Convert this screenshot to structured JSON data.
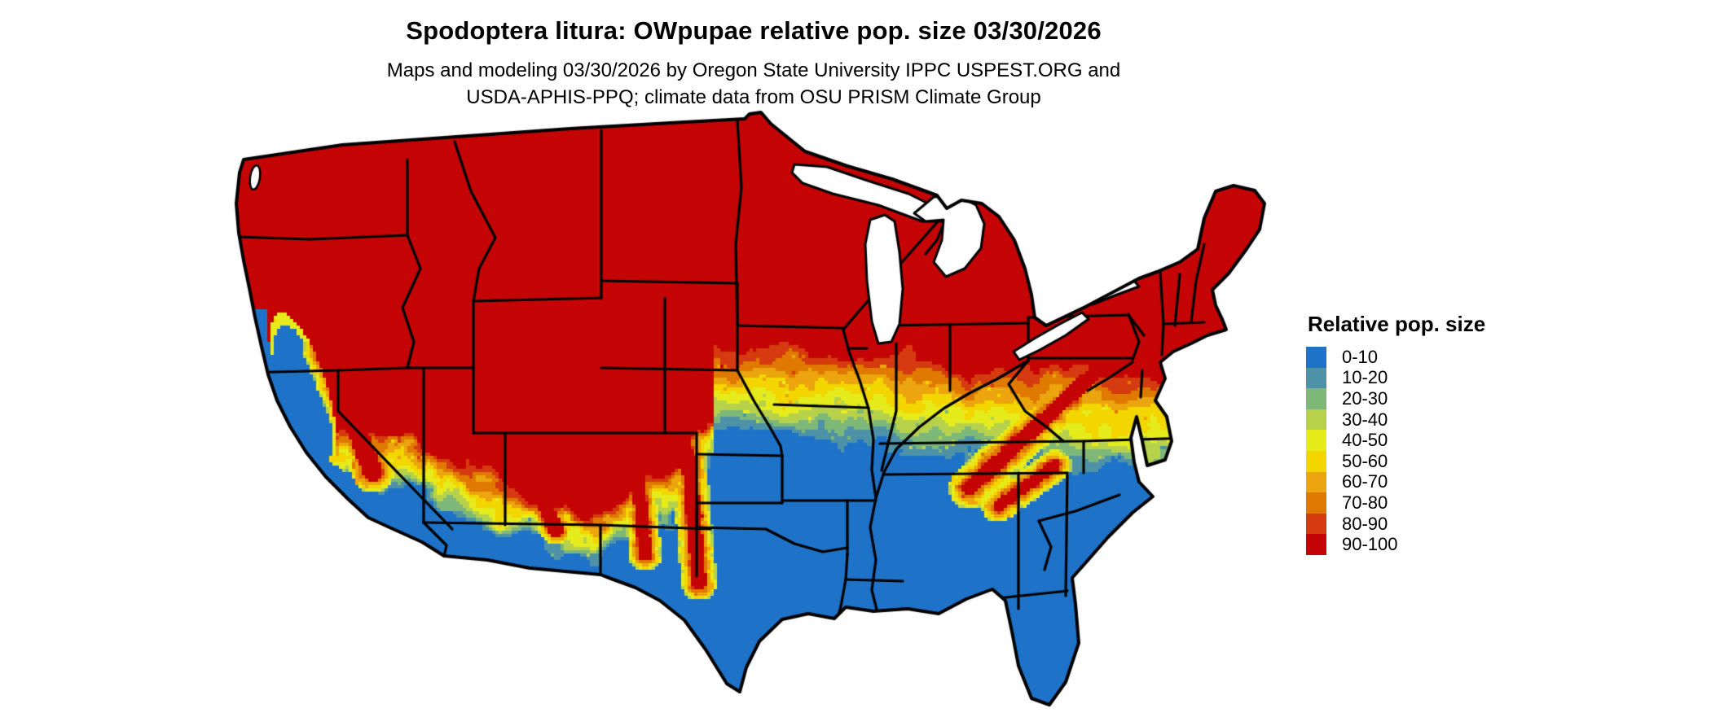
{
  "header": {
    "title": "Spodoptera litura: OWpupae relative pop. size 03/30/2026",
    "subtitle_line1": "Maps and modeling 03/30/2026 by Oregon State University IPPC USPEST.ORG and",
    "subtitle_line2": "USDA-APHIS-PPQ; climate data from OSU PRISM Climate Group"
  },
  "legend": {
    "title": "Relative pop. size",
    "items": [
      {
        "label": "0-10",
        "color": "#1E73C8"
      },
      {
        "label": "10-20",
        "color": "#4D92A6"
      },
      {
        "label": "20-30",
        "color": "#7DB878"
      },
      {
        "label": "30-40",
        "color": "#B7D24A"
      },
      {
        "label": "40-50",
        "color": "#E6EB1C"
      },
      {
        "label": "50-60",
        "color": "#F3D500"
      },
      {
        "label": "60-70",
        "color": "#ECA50F"
      },
      {
        "label": "70-80",
        "color": "#E07900"
      },
      {
        "label": "80-90",
        "color": "#D63A10"
      },
      {
        "label": "90-100",
        "color": "#C50505"
      }
    ]
  },
  "map": {
    "border_color": "#000000",
    "water_color": "#ffffff",
    "background_color": "#ffffff",
    "region_type": "Continental United States with state boundaries and Great Lakes"
  },
  "map_data": {
    "type": "heatmap",
    "title": "Spodoptera litura: OWpupae relative pop. size 03/30/2026",
    "legend_title": "Relative pop. size",
    "bins": [
      "0-10",
      "10-20",
      "20-30",
      "30-40",
      "40-50",
      "50-60",
      "60-70",
      "70-80",
      "80-90",
      "90-100"
    ],
    "bin_colors": [
      "#1E73C8",
      "#4D92A6",
      "#7DB878",
      "#B7D24A",
      "#E6EB1C",
      "#F3D500",
      "#ECA50F",
      "#E07900",
      "#D63A10",
      "#C50505"
    ],
    "legend_position": "right",
    "regions_summary": [
      "Northern states (Pacific Northwest, Rockies north, northern Plains, Midwest, Northeast) are 90-100 (red)",
      "Southern states (Texas, Gulf Coast, Southeast, Florida, southern California, low deserts) are 0-10 (blue)",
      "An east-west transition band (orange-yellow-green-teal) crosses Kansas, Missouri, the Ohio Valley and Virginia",
      "Mottled mountain terrain with red/yellow fingers across the Sierra Nevada, Great Basin, Arizona and New Mexico highlands",
      "California Central Valley and coast are 0-10 (blue); Appalachian ridges carry red streaks into Tennessee/North Carolina"
    ]
  }
}
